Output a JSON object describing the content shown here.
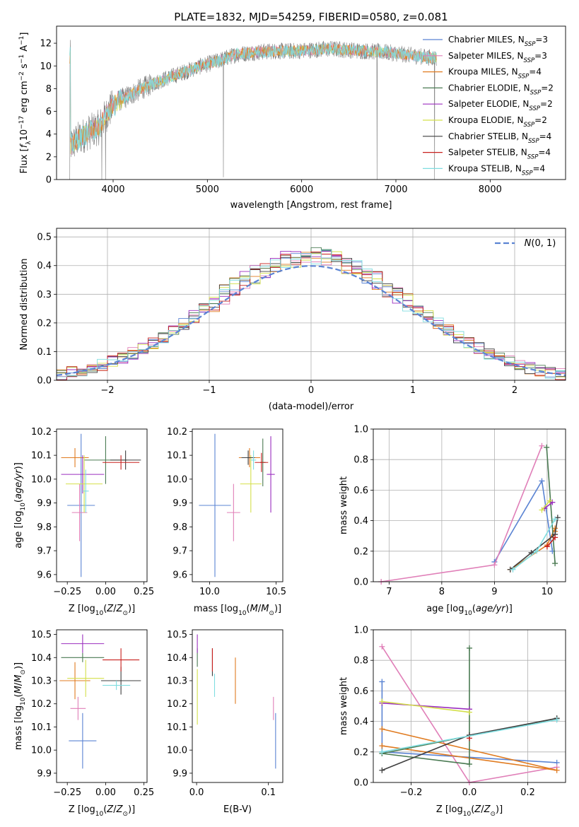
{
  "title": "PLATE=1832, MJD=54259, FIBERID=0580, z=0.081",
  "colors": {
    "blue": "#5b84d3",
    "orange": "#e07b20",
    "green": "#4a7a52",
    "red": "#c8201e",
    "purple": "#9b2fbf",
    "brown": "#8b5a2b",
    "pink": "#e07fb8",
    "gray": "#7f7f7f",
    "olive": "#d4e04a",
    "cyan": "#7fdde0",
    "darkgray": "#3f3f3f"
  },
  "chart_data": [
    {
      "type": "line",
      "panel": "spectrum",
      "xlabel": "wavelength [Angstrom, rest frame]",
      "ylabel": "Flux [f_λ10^-17 erg cm^-2 s^-1 A^-1]",
      "xlim": [
        3400,
        8800
      ],
      "ylim": [
        0,
        13.5
      ],
      "xticks": [
        "4000",
        "5000",
        "6000",
        "7000",
        "8000"
      ],
      "yticks": [
        "0",
        "2",
        "4",
        "6",
        "8",
        "10",
        "12"
      ],
      "ytick_values": [
        0,
        2,
        4,
        6,
        8,
        10,
        12
      ],
      "xtick_values": [
        4000,
        5000,
        6000,
        7000,
        8000
      ],
      "grid": false,
      "legend_position": "top-right",
      "legend": [
        {
          "label": "Chabrier MILES, N_SSP=3",
          "base": "Chabrier MILES, N",
          "sub": "SSP",
          "tail": "=3",
          "color": "#5b84d3"
        },
        {
          "label": "Salpeter MILES, N_SSP=3",
          "base": "Salpeter MILES, N",
          "sub": "SSP",
          "tail": "=3",
          "color": "#e07fb8"
        },
        {
          "label": "Kroupa MILES, N_SSP=4",
          "base": "Kroupa MILES, N",
          "sub": "SSP",
          "tail": "=4",
          "color": "#e07b20"
        },
        {
          "label": "Chabrier ELODIE, N_SSP=2",
          "base": "Chabrier ELODIE, N",
          "sub": "SSP",
          "tail": "=2",
          "color": "#4a7a52"
        },
        {
          "label": "Salpeter ELODIE, N_SSP=2",
          "base": "Salpeter ELODIE, N",
          "sub": "SSP",
          "tail": "=2",
          "color": "#9b2fbf"
        },
        {
          "label": "Kroupa ELODIE, N_SSP=2",
          "base": "Kroupa ELODIE, N",
          "sub": "SSP",
          "tail": "=2",
          "color": "#d4e04a"
        },
        {
          "label": "Chabrier STELIB, N_SSP=4",
          "base": "Chabrier STELIB, N",
          "sub": "SSP",
          "tail": "=4",
          "color": "#3f3f3f"
        },
        {
          "label": "Salpeter STELIB, N_SSP=4",
          "base": "Salpeter STELIB, N",
          "sub": "SSP",
          "tail": "=4",
          "color": "#c8201e"
        },
        {
          "label": "Kroupa STELIB, N_SSP=4",
          "base": "Kroupa STELIB, N",
          "sub": "SSP",
          "tail": "=4",
          "color": "#7fdde0"
        }
      ],
      "continuum": {
        "x": [
          3550,
          3650,
          3750,
          3850,
          3950,
          4050,
          4150,
          4300,
          4500,
          4700,
          4900,
          5100,
          5300,
          5500,
          5700,
          5900,
          6100,
          6300,
          6500,
          6700,
          6900,
          7100,
          7300,
          7420
        ],
        "y": [
          3.0,
          3.7,
          4.2,
          4.6,
          6.0,
          6.9,
          7.3,
          8.0,
          8.7,
          9.3,
          9.9,
          10.4,
          11.0,
          11.2,
          11.3,
          11.3,
          11.4,
          11.5,
          11.4,
          11.3,
          11.2,
          11.0,
          10.8,
          10.7
        ]
      },
      "data_x_range": [
        3540,
        7430
      ],
      "dips": [
        {
          "x": 3540,
          "y": 0.0
        },
        {
          "x": 3880,
          "y": 0.0
        },
        {
          "x": 3920,
          "y": 0.0
        },
        {
          "x": 5170,
          "y": 0.2
        },
        {
          "x": 6800,
          "y": 0.0
        },
        {
          "x": 7410,
          "y": 0.0
        }
      ]
    },
    {
      "type": "line",
      "panel": "residuals",
      "xlabel": "(data-model)/error",
      "ylabel": "Normed distribution",
      "xlim": [
        -2.5,
        2.5
      ],
      "ylim": [
        0,
        0.53
      ],
      "xticks": [
        "−2",
        "−1",
        "0",
        "1",
        "2"
      ],
      "xtick_values": [
        -2,
        -1,
        0,
        1,
        2
      ],
      "yticks": [
        "0.0",
        "0.1",
        "0.2",
        "0.3",
        "0.4",
        "0.5"
      ],
      "ytick_values": [
        0,
        0.1,
        0.2,
        0.3,
        0.4,
        0.5
      ],
      "grid": true,
      "legend_position": "top-right",
      "legend_label": "N(0,1)",
      "gaussian": {
        "mu": 0,
        "sigma": 1,
        "color": "#5b84d3"
      },
      "bin_width": 0.1,
      "hist_series": [
        {
          "name": "Chabrier MILES",
          "color": "#5b84d3"
        },
        {
          "name": "Salpeter MILES",
          "color": "#e07fb8"
        },
        {
          "name": "Kroupa MILES",
          "color": "#e07b20"
        },
        {
          "name": "Chabrier ELODIE",
          "color": "#4a7a52"
        },
        {
          "name": "Salpeter ELODIE",
          "color": "#9b2fbf"
        },
        {
          "name": "Kroupa ELODIE",
          "color": "#d4e04a"
        },
        {
          "name": "Chabrier STELIB",
          "color": "#3f3f3f"
        },
        {
          "name": "Salpeter STELIB",
          "color": "#c8201e"
        },
        {
          "name": "Kroupa STELIB",
          "color": "#7fdde0"
        }
      ]
    },
    {
      "type": "scatter",
      "panel": "age-vs-Z",
      "xlabel": "Z [log10(Z/Z⊙)]",
      "ylabel": "age [log10(age/yr)]",
      "xlim": [
        -0.32,
        0.27
      ],
      "ylim": [
        9.57,
        10.21
      ],
      "xticks": [
        "−0.25",
        "0.00",
        "0.25"
      ],
      "xtick_values": [
        -0.25,
        0,
        0.25
      ],
      "yticks": [
        "9.6",
        "9.7",
        "9.8",
        "9.9",
        "10.0",
        "10.1",
        "10.2"
      ],
      "ytick_values": [
        9.6,
        9.7,
        9.8,
        9.9,
        10.0,
        10.1,
        10.2
      ],
      "points": [
        {
          "x": -0.16,
          "y": 9.89,
          "xerr": 0.09,
          "yerr": 0.3,
          "color": "#5b84d3"
        },
        {
          "x": -0.17,
          "y": 9.86,
          "xerr": 0.05,
          "yerr": 0.12,
          "color": "#e07fb8"
        },
        {
          "x": -0.2,
          "y": 10.09,
          "xerr": 0.09,
          "yerr": 0.04,
          "color": "#e07b20"
        },
        {
          "x": 0.0,
          "y": 10.08,
          "xerr": 0.14,
          "yerr": 0.1,
          "color": "#4a7a52"
        },
        {
          "x": -0.15,
          "y": 10.02,
          "xerr": 0.14,
          "yerr": 0.08,
          "color": "#9b2fbf"
        },
        {
          "x": -0.14,
          "y": 9.98,
          "xerr": 0.12,
          "yerr": 0.12,
          "color": "#d4e04a"
        },
        {
          "x": 0.13,
          "y": 10.08,
          "xerr": 0.1,
          "yerr": 0.04,
          "color": "#3f3f3f"
        },
        {
          "x": 0.1,
          "y": 10.07,
          "xerr": 0.12,
          "yerr": 0.03,
          "color": "#c8201e"
        },
        {
          "x": -0.13,
          "y": 9.95,
          "xerr": 0.02,
          "yerr": 0.09,
          "color": "#7fdde0"
        }
      ]
    },
    {
      "type": "scatter",
      "panel": "age-vs-mass",
      "xlabel": "mass [log10(M/M⊙)]",
      "ylabel": "",
      "xlim": [
        9.87,
        10.55
      ],
      "ylim": [
        9.57,
        10.21
      ],
      "xticks": [
        "10.0",
        "10.5"
      ],
      "xtick_values": [
        10.0,
        10.5
      ],
      "yticks": [
        "9.6",
        "9.7",
        "9.8",
        "9.9",
        "10.0",
        "10.1",
        "10.2"
      ],
      "ytick_values": [
        9.6,
        9.7,
        9.8,
        9.9,
        10.0,
        10.1,
        10.2
      ],
      "points": [
        {
          "x": 10.04,
          "y": 9.89,
          "xerr": 0.12,
          "yerr": 0.3,
          "color": "#5b84d3"
        },
        {
          "x": 10.18,
          "y": 9.86,
          "xerr": 0.05,
          "yerr": 0.12,
          "color": "#e07fb8"
        },
        {
          "x": 10.3,
          "y": 10.09,
          "xerr": 0.08,
          "yerr": 0.04,
          "color": "#e07b20"
        },
        {
          "x": 10.4,
          "y": 10.07,
          "xerr": 0.02,
          "yerr": 0.1,
          "color": "#4a7a52"
        },
        {
          "x": 10.46,
          "y": 10.02,
          "xerr": 0.03,
          "yerr": 0.16,
          "color": "#9b2fbf"
        },
        {
          "x": 10.31,
          "y": 9.98,
          "xerr": 0.08,
          "yerr": 0.12,
          "color": "#d4e04a"
        },
        {
          "x": 10.29,
          "y": 10.09,
          "xerr": 0.05,
          "yerr": 0.03,
          "color": "#3f3f3f"
        },
        {
          "x": 10.39,
          "y": 10.07,
          "xerr": 0.05,
          "yerr": 0.04,
          "color": "#c8201e"
        },
        {
          "x": 10.33,
          "y": 10.08,
          "xerr": 0.02,
          "yerr": 0.04,
          "color": "#7fdde0"
        }
      ]
    },
    {
      "type": "line",
      "panel": "mass-weight-vs-age",
      "xlabel": "age [log10(age/yr)]",
      "ylabel": "mass weight",
      "xlim": [
        6.7,
        10.35
      ],
      "ylim": [
        0,
        1.0
      ],
      "xticks": [
        "7",
        "8",
        "9",
        "10"
      ],
      "xtick_values": [
        7,
        8,
        9,
        10
      ],
      "yticks": [
        "0.0",
        "0.2",
        "0.4",
        "0.6",
        "0.8",
        "1.0"
      ],
      "ytick_values": [
        0,
        0.2,
        0.4,
        0.6,
        0.8,
        1.0
      ],
      "grid": true,
      "series": [
        {
          "color": "#5b84d3",
          "x": [
            9.0,
            9.9,
            10.1
          ],
          "y": [
            0.13,
            0.66,
            0.2
          ]
        },
        {
          "color": "#e07fb8",
          "x": [
            6.85,
            9.0,
            9.9
          ],
          "y": [
            0.0,
            0.11,
            0.89
          ]
        },
        {
          "color": "#e07b20",
          "x": [
            9.3,
            10.0,
            10.15,
            10.15
          ],
          "y": [
            0.08,
            0.24,
            0.35,
            0.33
          ]
        },
        {
          "color": "#4a7a52",
          "x": [
            9.99,
            10.15
          ],
          "y": [
            0.88,
            0.12
          ]
        },
        {
          "color": "#9b2fbf",
          "x": [
            9.95,
            10.1
          ],
          "y": [
            0.48,
            0.52
          ]
        },
        {
          "color": "#d4e04a",
          "x": [
            9.9,
            10.05
          ],
          "y": [
            0.47,
            0.53
          ]
        },
        {
          "color": "#3f3f3f",
          "x": [
            9.3,
            9.7,
            10.15,
            10.2
          ],
          "y": [
            0.08,
            0.19,
            0.31,
            0.42
          ]
        },
        {
          "color": "#c8201e",
          "x": [
            10.0,
            10.15
          ],
          "y": [
            0.23,
            0.29
          ]
        },
        {
          "color": "#7fdde0",
          "x": [
            9.35,
            9.8,
            10.15
          ],
          "y": [
            0.08,
            0.2,
            0.41
          ]
        }
      ]
    },
    {
      "type": "scatter",
      "panel": "mass-vs-Z",
      "xlabel": "Z [log10(Z/Z⊙)]",
      "ylabel": "mass [log10(M/M⊙)]",
      "xlim": [
        -0.32,
        0.27
      ],
      "ylim": [
        9.86,
        10.52
      ],
      "xticks": [
        "−0.25",
        "0.00",
        "0.25"
      ],
      "xtick_values": [
        -0.25,
        0,
        0.25
      ],
      "yticks": [
        "9.9",
        "10.0",
        "10.1",
        "10.2",
        "10.3",
        "10.4",
        "10.5"
      ],
      "ytick_values": [
        9.9,
        10.0,
        10.1,
        10.2,
        10.3,
        10.4,
        10.5
      ],
      "points": [
        {
          "x": -0.15,
          "y": 10.04,
          "xerr": 0.09,
          "yerr": 0.12,
          "color": "#5b84d3"
        },
        {
          "x": -0.18,
          "y": 10.18,
          "xerr": 0.05,
          "yerr": 0.05,
          "color": "#e07fb8"
        },
        {
          "x": -0.2,
          "y": 10.3,
          "xerr": 0.1,
          "yerr": 0.08,
          "color": "#e07b20"
        },
        {
          "x": -0.15,
          "y": 10.4,
          "xerr": 0.14,
          "yerr": 0.02,
          "color": "#4a7a52"
        },
        {
          "x": -0.15,
          "y": 10.46,
          "xerr": 0.14,
          "yerr": 0.04,
          "color": "#9b2fbf"
        },
        {
          "x": -0.13,
          "y": 10.31,
          "xerr": 0.12,
          "yerr": 0.08,
          "color": "#d4e04a"
        },
        {
          "x": 0.1,
          "y": 10.3,
          "xerr": 0.13,
          "yerr": 0.06,
          "color": "#3f3f3f"
        },
        {
          "x": 0.1,
          "y": 10.39,
          "xerr": 0.12,
          "yerr": 0.05,
          "color": "#c8201e"
        },
        {
          "x": 0.07,
          "y": 10.28,
          "xerr": 0.09,
          "yerr": 0.02,
          "color": "#7fdde0"
        }
      ]
    },
    {
      "type": "scatter",
      "panel": "mass-vs-EBV",
      "xlabel": "E(B-V)",
      "ylabel": "",
      "xlim": [
        -0.006,
        0.12
      ],
      "ylim": [
        9.86,
        10.52
      ],
      "xticks": [
        "0.0",
        "0.1"
      ],
      "xtick_values": [
        0.0,
        0.1
      ],
      "yticks": [
        "9.9",
        "10.0",
        "10.1",
        "10.2",
        "10.3",
        "10.4",
        "10.5"
      ],
      "ytick_values": [
        9.9,
        10.0,
        10.1,
        10.2,
        10.3,
        10.4,
        10.5
      ],
      "points": [
        {
          "x": 0.11,
          "y": 10.04,
          "xerr": 0,
          "yerr": 0.12,
          "color": "#5b84d3"
        },
        {
          "x": 0.107,
          "y": 10.18,
          "xerr": 0,
          "yerr": 0.05,
          "color": "#e07fb8"
        },
        {
          "x": 0.054,
          "y": 10.3,
          "xerr": 0,
          "yerr": 0.1,
          "color": "#e07b20"
        },
        {
          "x": 0.001,
          "y": 10.4,
          "xerr": 0,
          "yerr": 0.04,
          "color": "#4a7a52"
        },
        {
          "x": 0.001,
          "y": 10.46,
          "xerr": 0,
          "yerr": 0.04,
          "color": "#9b2fbf"
        },
        {
          "x": 0.001,
          "y": 10.23,
          "xerr": 0,
          "yerr": 0.12,
          "color": "#d4e04a"
        },
        {
          "x": 0.022,
          "y": 10.38,
          "xerr": 0,
          "yerr": 0.06,
          "color": "#3f3f3f"
        },
        {
          "x": 0.022,
          "y": 10.39,
          "xerr": 0,
          "yerr": 0.05,
          "color": "#c8201e"
        },
        {
          "x": 0.025,
          "y": 10.28,
          "xerr": 0,
          "yerr": 0.05,
          "color": "#7fdde0"
        }
      ]
    },
    {
      "type": "line",
      "panel": "mass-weight-vs-Z",
      "xlabel": "Z [log10(Z/Z⊙)]",
      "ylabel": "mass weight",
      "xlim": [
        -0.33,
        0.33
      ],
      "ylim": [
        0,
        1.0
      ],
      "xticks": [
        "−0.2",
        "0.0",
        "0.2"
      ],
      "xtick_values": [
        -0.2,
        0.0,
        0.2
      ],
      "yticks": [
        "0.0",
        "0.2",
        "0.4",
        "0.6",
        "0.8",
        "1.0"
      ],
      "ytick_values": [
        0,
        0.2,
        0.4,
        0.6,
        0.8,
        1.0
      ],
      "grid": true,
      "series": [
        {
          "color": "#5b84d3",
          "x": [
            -0.3,
            -0.3,
            0.3
          ],
          "y": [
            0.66,
            0.2,
            0.13
          ]
        },
        {
          "color": "#e07fb8",
          "x": [
            -0.3,
            0.0,
            0.3
          ],
          "y": [
            0.89,
            0.0,
            0.1
          ]
        },
        {
          "color": "#e07b20",
          "x": [
            -0.3,
            0.3,
            -0.3
          ],
          "y": [
            0.35,
            0.08,
            0.24
          ]
        },
        {
          "color": "#4a7a52",
          "x": [
            0.0,
            0.0,
            -0.3,
            0.3
          ],
          "y": [
            0.88,
            0.12,
            0.19,
            0.42
          ]
        },
        {
          "color": "#9b2fbf",
          "x": [
            -0.3,
            0.0
          ],
          "y": [
            0.52,
            0.48
          ]
        },
        {
          "color": "#d4e04a",
          "x": [
            -0.3,
            0.0
          ],
          "y": [
            0.53,
            0.46
          ]
        },
        {
          "color": "#3f3f3f",
          "x": [
            -0.3,
            0.0,
            0.3
          ],
          "y": [
            0.08,
            0.31,
            0.42
          ]
        },
        {
          "color": "#c8201e",
          "x": [
            0.0
          ],
          "y": [
            0.29
          ]
        },
        {
          "color": "#7fdde0",
          "x": [
            -0.3,
            0.3
          ],
          "y": [
            0.2,
            0.41
          ]
        }
      ]
    }
  ]
}
